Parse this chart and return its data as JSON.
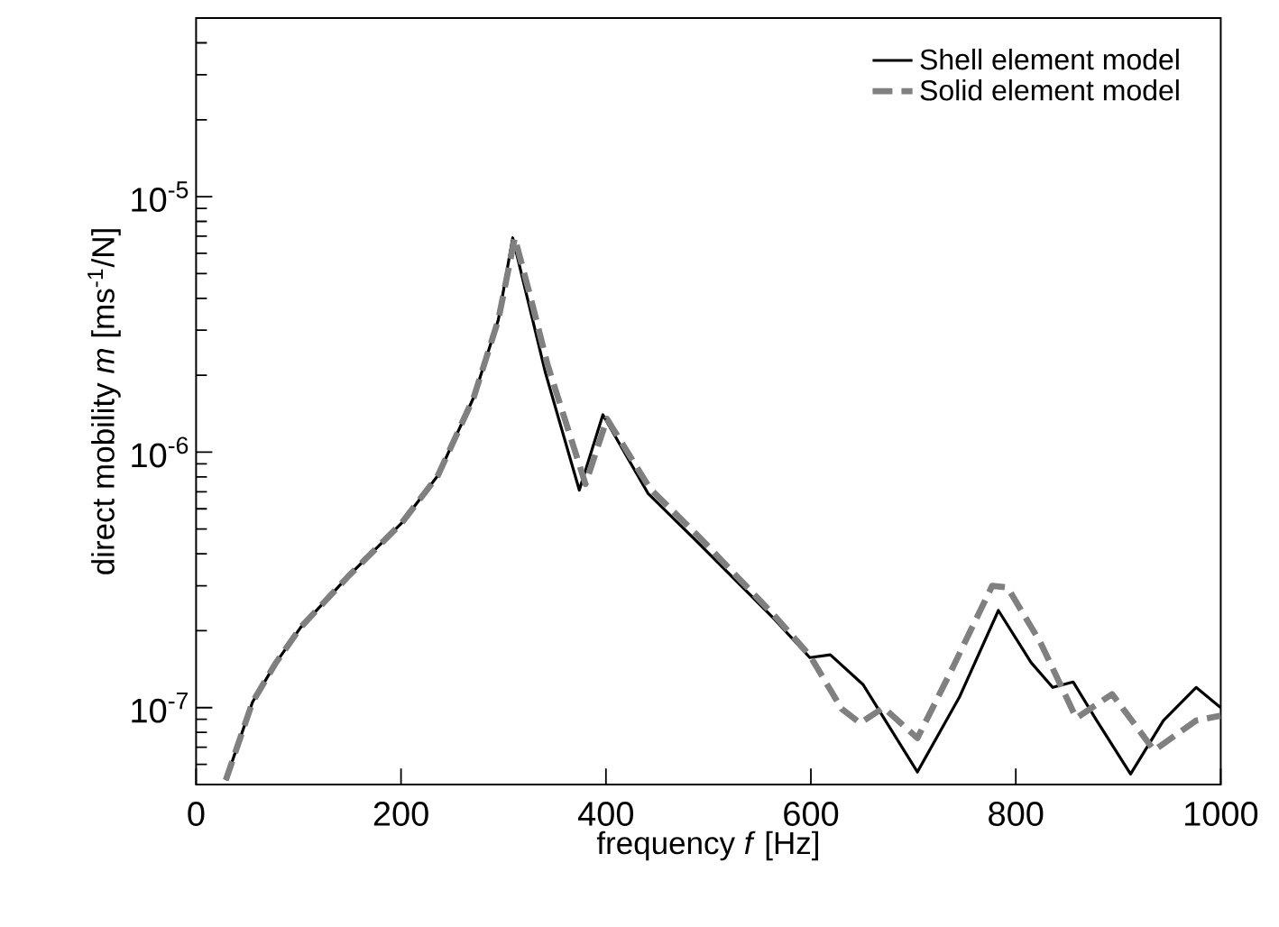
{
  "chart_data": {
    "type": "line",
    "xlabel": "frequency *f* [Hz]",
    "ylabel": "direct mobility *m* [ms$^{-1}$/N]",
    "log": "y",
    "xlim": [
      0,
      1000
    ],
    "ylim": [
      5e-08,
      5e-05
    ],
    "xticks": [
      0,
      200,
      400,
      600,
      800,
      1000
    ],
    "yticks": [
      {
        "value": 6e-08,
        "label": null
      },
      {
        "value": 7e-08,
        "label": null
      },
      {
        "value": 8e-08,
        "label": null
      },
      {
        "value": 9e-08,
        "label": null
      },
      {
        "value": 1e-07,
        "label": "10$^{-7}$"
      },
      {
        "value": 2e-07,
        "label": null
      },
      {
        "value": 3e-07,
        "label": null
      },
      {
        "value": 4e-07,
        "label": null
      },
      {
        "value": 5e-07,
        "label": null
      },
      {
        "value": 6e-07,
        "label": null
      },
      {
        "value": 7e-07,
        "label": null
      },
      {
        "value": 8e-07,
        "label": null
      },
      {
        "value": 9e-07,
        "label": null
      },
      {
        "value": 1e-06,
        "label": "10$^{-6}$"
      },
      {
        "value": 2e-06,
        "label": null
      },
      {
        "value": 3e-06,
        "label": null
      },
      {
        "value": 4e-06,
        "label": null
      },
      {
        "value": 5e-06,
        "label": null
      },
      {
        "value": 6e-06,
        "label": null
      },
      {
        "value": 7e-06,
        "label": null
      },
      {
        "value": 8e-06,
        "label": null
      },
      {
        "value": 9e-06,
        "label": null
      },
      {
        "value": 1e-05,
        "label": "10$^{-5}$"
      },
      {
        "value": 2e-05,
        "label": null
      },
      {
        "value": 3e-05,
        "label": null
      },
      {
        "value": 4e-05,
        "label": null
      },
      {
        "value": 5e-05,
        "label": null
      }
    ],
    "grid": false,
    "legend": "top right",
    "marker": "none",
    "series": [
      {
        "name": "Shell element model",
        "color": "#000000",
        "line_style": "solid",
        "x": [
          29,
          55,
          78,
          102,
          148,
          201,
          236,
          271,
          295,
          309,
          324,
          341,
          374,
          397,
          441,
          488,
          564,
          599,
          619,
          651,
          704,
          745,
          783,
          815,
          836,
          856,
          879,
          912,
          944,
          976,
          1000
        ],
        "values": [
          5.2e-08,
          1.05e-07,
          1.5e-07,
          2.06e-07,
          3.25e-07,
          5.3e-07,
          8.1e-07,
          1.64e-06,
          3.3e-06,
          6.9e-06,
          3.9e-06,
          2.04e-06,
          7.1e-07,
          1.4e-06,
          6.9e-07,
          4.5e-07,
          2.23e-07,
          1.57e-07,
          1.61e-07,
          1.23e-07,
          5.6e-08,
          1.1e-07,
          2.4e-07,
          1.5e-07,
          1.2e-07,
          1.26e-07,
          8.9e-08,
          5.5e-08,
          8.9e-08,
          1.2e-07,
          1e-07
        ]
      },
      {
        "name": "Solid element model",
        "color": "#808080",
        "line_style": "dashed",
        "x": [
          29,
          55,
          78,
          102,
          148,
          201,
          236,
          271,
          295,
          311,
          326,
          343,
          380,
          401,
          443,
          490,
          564,
          599,
          630,
          648,
          671,
          704,
          736,
          777,
          792,
          824,
          859,
          894,
          935,
          976,
          1000
        ],
        "values": [
          5.2e-08,
          1.05e-07,
          1.5e-07,
          2.06e-07,
          3.25e-07,
          5.3e-07,
          8.1e-07,
          1.64e-06,
          3.3e-06,
          6.9e-06,
          4.1e-06,
          2.2e-06,
          7.5e-07,
          1.35e-06,
          7.2e-07,
          4.7e-07,
          2.3e-07,
          1.6e-07,
          9.9e-08,
          8.7e-08,
          1e-07,
          7.6e-08,
          1.37e-07,
          3e-07,
          2.95e-07,
          1.8e-07,
          9.1e-08,
          1.13e-07,
          6.8e-08,
          8.9e-08,
          9.3e-08
        ]
      }
    ]
  }
}
